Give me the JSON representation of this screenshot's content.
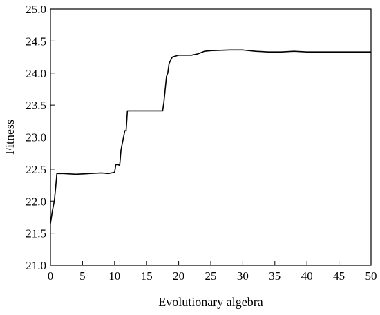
{
  "chart_data": {
    "type": "line",
    "title": "",
    "xlabel": "Evolutionary algebra",
    "ylabel": "Fitness",
    "xlim": [
      0,
      50
    ],
    "ylim": [
      21.0,
      25.0
    ],
    "xticks": [
      0,
      5,
      10,
      15,
      20,
      25,
      30,
      35,
      40,
      45,
      50
    ],
    "yticks": [
      21.0,
      21.5,
      22.0,
      22.5,
      23.0,
      23.5,
      24.0,
      24.5,
      25.0
    ],
    "xtick_labels": [
      "0",
      "5",
      "10",
      "15",
      "20",
      "25",
      "30",
      "35",
      "40",
      "45",
      "50"
    ],
    "ytick_labels": [
      "21.0",
      "21.5",
      "22.0",
      "22.5",
      "23.0",
      "23.5",
      "24.0",
      "24.5",
      "25.0"
    ],
    "grid": false,
    "legend": false,
    "line_color": "#000000",
    "series": [
      {
        "x": [
          0,
          0.3,
          0.6,
          0.8,
          1.0,
          2.0,
          4.0,
          6.0,
          8.0,
          9.0,
          9.5,
          10.0,
          10.2,
          10.5,
          10.8,
          11.0,
          11.2,
          11.3,
          11.5,
          11.6,
          11.8,
          12.0,
          14.0,
          16.0,
          17.5,
          17.7,
          17.8,
          18.0,
          18.1,
          18.3,
          18.5,
          19.0,
          20.0,
          22.0,
          23.0,
          24.0,
          25.0,
          28.0,
          30.0,
          32.0,
          34.0,
          36.0,
          38.0,
          40.0,
          42.0,
          44.0,
          46.0,
          48.0,
          50.0
        ],
        "y": [
          21.65,
          21.85,
          22.0,
          22.2,
          22.43,
          22.43,
          22.42,
          22.43,
          22.44,
          22.43,
          22.44,
          22.45,
          22.57,
          22.57,
          22.56,
          22.8,
          22.9,
          22.95,
          23.05,
          23.1,
          23.1,
          23.41,
          23.41,
          23.41,
          23.41,
          23.55,
          23.65,
          23.85,
          23.95,
          24.0,
          24.15,
          24.25,
          24.28,
          24.28,
          24.3,
          24.34,
          24.35,
          24.36,
          24.36,
          24.34,
          24.33,
          24.33,
          24.34,
          24.33,
          24.33,
          24.33,
          24.33,
          24.33,
          24.33
        ]
      }
    ]
  }
}
